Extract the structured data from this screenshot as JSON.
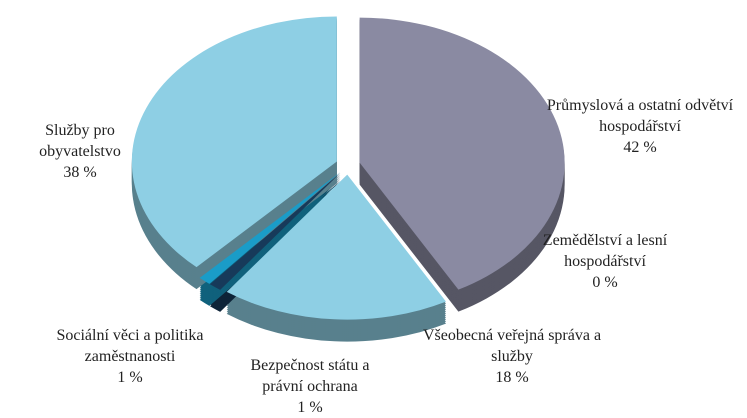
{
  "chart_data": {
    "type": "pie",
    "categories": [
      "Průmyslová a ostatní odvětví hospodářství",
      "Zemědělství a lesní hospodářství",
      "Všeobecná veřejná správa a služby",
      "Bezpečnost státu a právní ochrana",
      "Sociální věci a politika zaměstnanosti",
      "Služby pro obyvatelstvo"
    ],
    "values": [
      42,
      0,
      18,
      1,
      1,
      38
    ],
    "value_labels": [
      "42 %",
      "0 %",
      "18 %",
      "1 %",
      "1 %",
      "38 %"
    ],
    "colors": [
      "#8a8aa2",
      "#8ecfe4",
      "#8ecfe4",
      "#173a5a",
      "#1a9cc8",
      "#8ecfe4"
    ]
  }
}
